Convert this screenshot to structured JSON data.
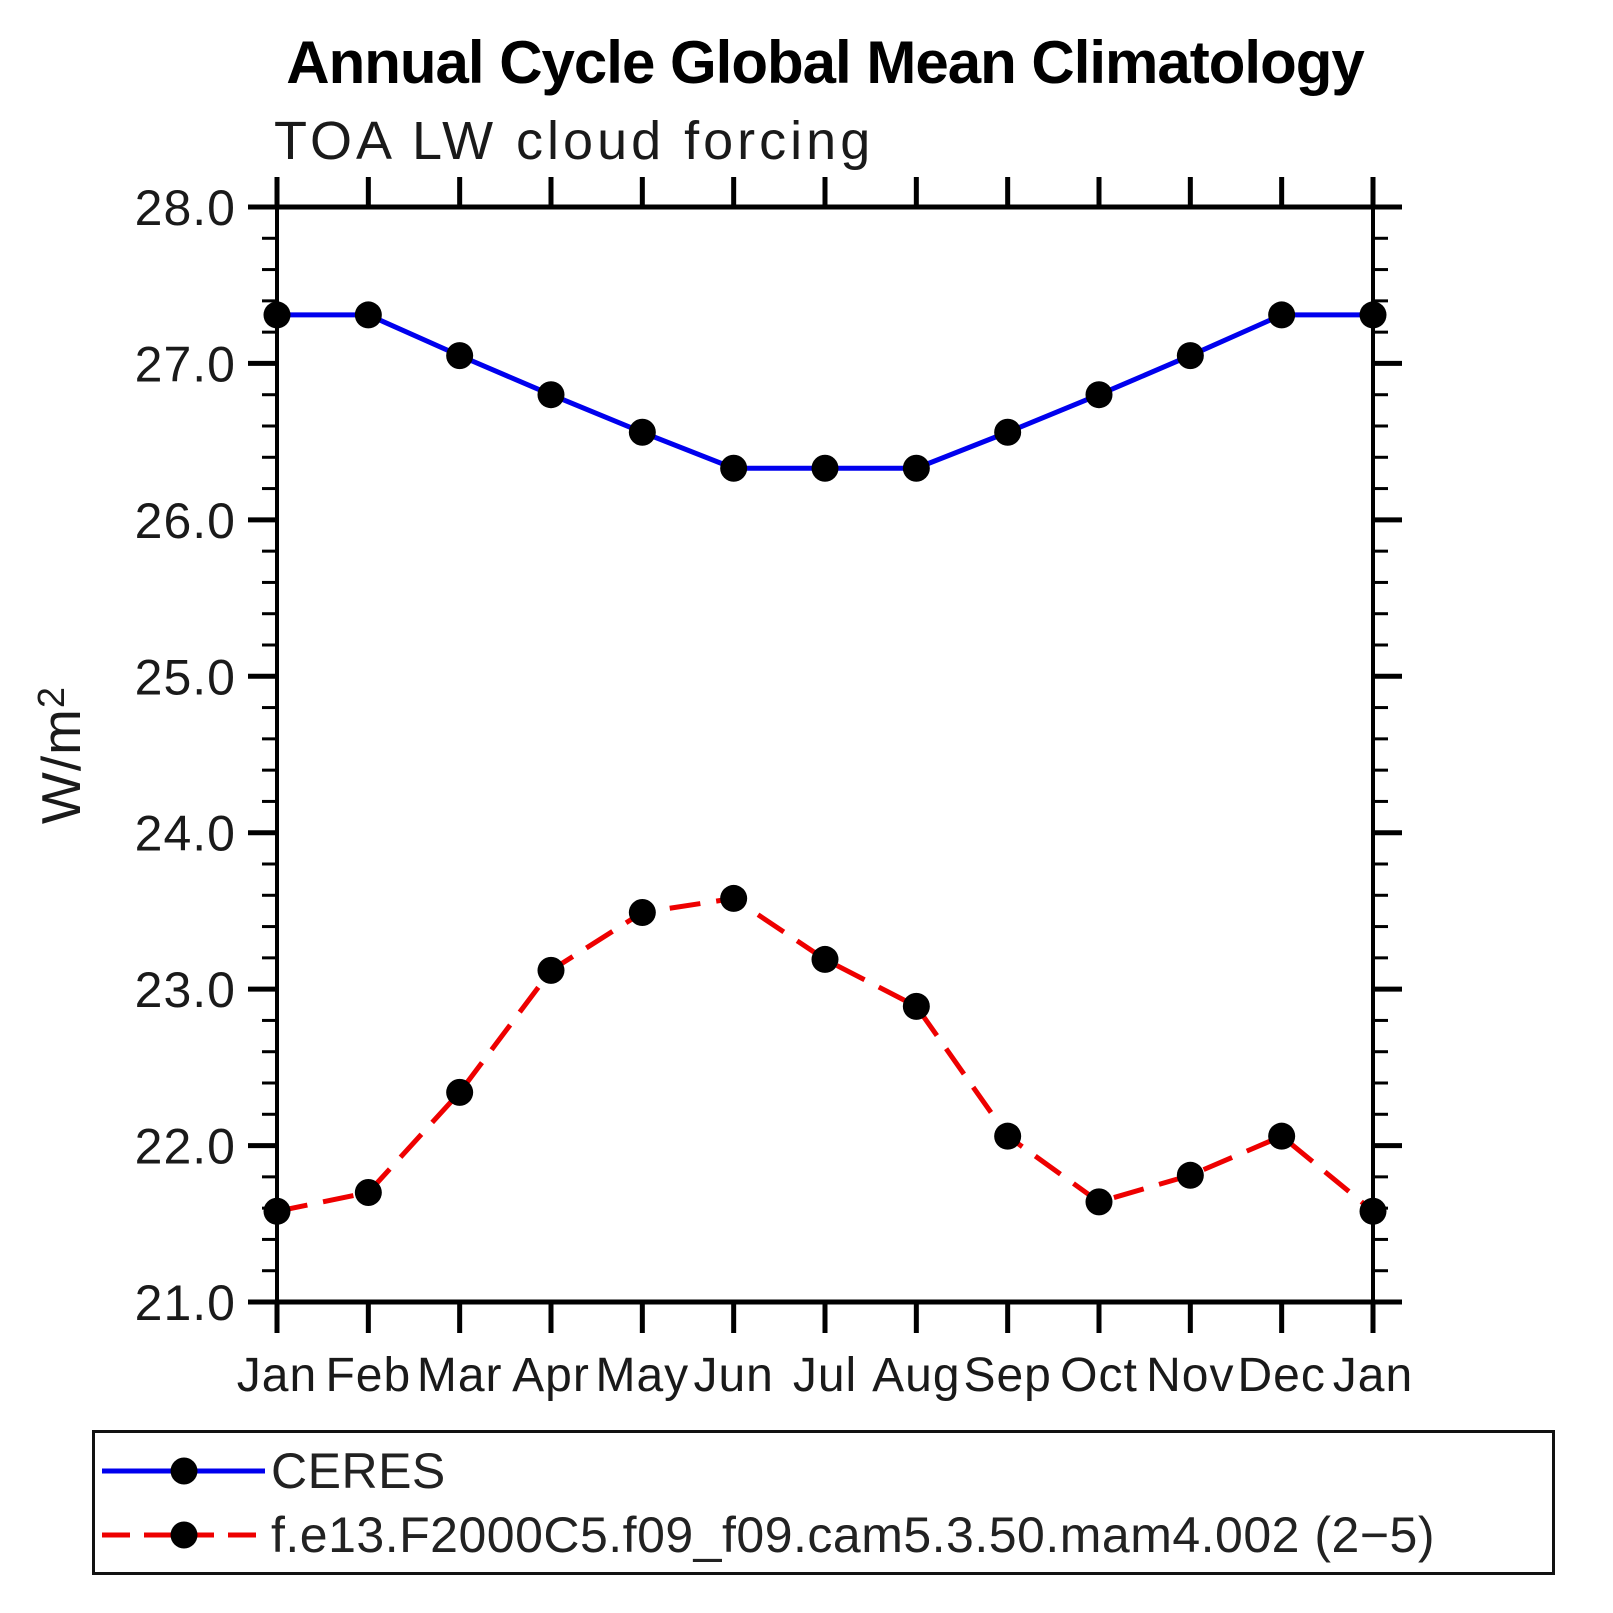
{
  "title": "Annual Cycle Global Mean Climatology",
  "subtitle": "TOA LW cloud forcing",
  "y_axis": {
    "label": "W/m²",
    "label_main": "W/m",
    "label_sup": "2"
  },
  "chart_data": {
    "type": "line",
    "title": "Annual Cycle Global Mean Climatology",
    "subtitle": "TOA LW cloud forcing",
    "xlabel": "",
    "ylabel": "W/m²",
    "ylim": [
      21.0,
      28.0
    ],
    "y_major_tick_step": 1.0,
    "y_minor_tick_step": 0.2,
    "grid": false,
    "legend_position": "bottom",
    "categories": [
      "Jan",
      "Feb",
      "Mar",
      "Apr",
      "May",
      "Jun",
      "Jul",
      "Aug",
      "Sep",
      "Oct",
      "Nov",
      "Dec",
      "Jan"
    ],
    "series": [
      {
        "name": "CERES",
        "color": "#0000ee",
        "line_style": "solid",
        "marker": "filled-circle",
        "marker_color": "#000000",
        "values": [
          27.31,
          27.31,
          27.05,
          26.8,
          26.56,
          26.33,
          26.33,
          26.33,
          26.56,
          26.8,
          27.05,
          27.31,
          27.31
        ]
      },
      {
        "name": "f.e13.F2000C5.f09_f09.cam5.3.50.mam4.002 (2−5)",
        "color": "#ee0000",
        "line_style": "dashed",
        "marker": "filled-circle",
        "marker_color": "#000000",
        "values": [
          21.58,
          21.7,
          22.34,
          23.12,
          23.49,
          23.58,
          23.19,
          22.89,
          22.06,
          21.64,
          21.81,
          22.06,
          21.58
        ]
      }
    ]
  }
}
